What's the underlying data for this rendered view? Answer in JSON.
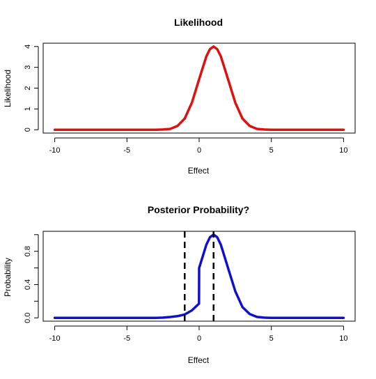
{
  "chart_data": [
    {
      "type": "line",
      "title": "Likelihood",
      "xlabel": "Effect",
      "ylabel": "Likelihood",
      "xlim": [
        -10.8,
        10.8
      ],
      "ylim": [
        -0.16,
        4.16
      ],
      "xticks": [
        -10,
        -5,
        0,
        5,
        10
      ],
      "xtick_labels": [
        "-10",
        "-5",
        "0",
        "5",
        "10"
      ],
      "yticks": [
        0,
        1,
        2,
        3,
        4
      ],
      "ytick_labels": [
        "0",
        "1",
        "2",
        "3",
        "4"
      ],
      "ytick_rotated": true,
      "grid": false,
      "series": [
        {
          "color": "#dd1111",
          "x": [
            -10,
            -3,
            -2.5,
            -2,
            -1.5,
            -1,
            -0.5,
            0,
            0.25,
            0.5,
            0.75,
            1,
            1.25,
            1.5,
            1.75,
            2,
            2.5,
            3,
            3.5,
            4,
            4.5,
            5,
            10
          ],
          "y": [
            0,
            0,
            0.01,
            0.04,
            0.18,
            0.54,
            1.3,
            2.43,
            2.98,
            3.53,
            3.88,
            4.0,
            3.88,
            3.53,
            2.98,
            2.43,
            1.3,
            0.54,
            0.18,
            0.04,
            0.01,
            0,
            0
          ]
        }
      ]
    },
    {
      "type": "line",
      "title": "Posterior Probability?",
      "xlabel": "Effect",
      "ylabel": "Probability",
      "xlim": [
        -10.8,
        10.8
      ],
      "ylim": [
        -0.04,
        1.04
      ],
      "xticks": [
        -10,
        -5,
        0,
        5,
        10
      ],
      "xtick_labels": [
        "-10",
        "-5",
        "0",
        "5",
        "10"
      ],
      "yticks": [
        0,
        0.2,
        0.4,
        0.6,
        0.8,
        1.0
      ],
      "ytick_labels": [
        "0.0",
        "",
        "0.4",
        "",
        "0.8",
        ""
      ],
      "ytick_rotated": true,
      "grid": false,
      "series": [
        {
          "color": "#1010cc",
          "x": [
            -10,
            -3,
            -2.5,
            -2,
            -1.5,
            -1,
            -0.5,
            -0.01,
            0,
            0.25,
            0.5,
            0.75,
            1,
            1.25,
            1.5,
            1.75,
            2,
            2.5,
            3,
            3.5,
            4,
            4.5,
            5,
            10
          ],
          "y": [
            0,
            0,
            0.003,
            0.01,
            0.02,
            0.04,
            0.09,
            0.17,
            0.6,
            0.74,
            0.88,
            0.97,
            1.0,
            0.97,
            0.88,
            0.74,
            0.6,
            0.32,
            0.13,
            0.045,
            0.011,
            0.003,
            0,
            0
          ]
        }
      ],
      "vlines": [
        {
          "x": -1,
          "color": "#000000",
          "style": "dashed"
        },
        {
          "x": 1,
          "color": "#000000",
          "style": "dashed"
        }
      ]
    }
  ]
}
